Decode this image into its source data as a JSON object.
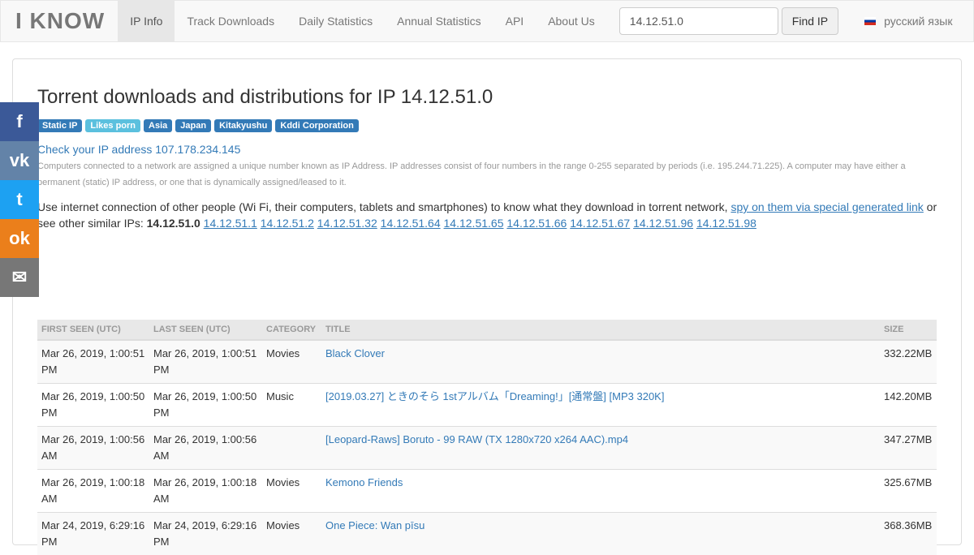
{
  "nav": {
    "logo": "I KNOW",
    "items": [
      "IP Info",
      "Track Downloads",
      "Daily Statistics",
      "Annual Statistics",
      "API",
      "About Us"
    ],
    "search_value": "14.12.51.0",
    "find_label": "Find IP",
    "language": "русский язык"
  },
  "heading": "Torrent downloads and distributions for IP 14.12.51.0",
  "badges": [
    "Static IP",
    "Likes porn",
    "Asia",
    "Japan",
    "Kitakyushu",
    "Kddi Corporation"
  ],
  "check_ip": "Check your IP address 107.178.234.145",
  "explain": "Computers connected to a network are assigned a unique number known as IP Address. IP addresses consist of four numbers in the range 0-255 separated by periods (i.e. 195.244.71.225). A computer may have either a permanent (static) IP address, or one that is dynamically assigned/leased to it.",
  "use_text": "Use internet connection of other people (Wi Fi, their computers, tablets and smartphones) to know what they download in torrent network, ",
  "spy_link": "spy on them via special generated link",
  "similar_text": " or see other similar IPs: ",
  "current_ip": "14.12.51.0",
  "similar_ips": [
    "14.12.51.1",
    "14.12.51.2",
    "14.12.51.32",
    "14.12.51.64",
    "14.12.51.65",
    "14.12.51.66",
    "14.12.51.67",
    "14.12.51.96",
    "14.12.51.98"
  ],
  "social": [
    {
      "icon": "facebook-icon",
      "glyph": "f",
      "color": "#3b5998"
    },
    {
      "icon": "vk-icon",
      "glyph": "vk",
      "color": "#6383a8"
    },
    {
      "icon": "twitter-icon",
      "glyph": "t",
      "color": "#1da1f2"
    },
    {
      "icon": "odnoklassniki-icon",
      "glyph": "ok",
      "color": "#eb7f1b"
    },
    {
      "icon": "email-icon",
      "glyph": "✉",
      "color": "#777"
    }
  ],
  "table": {
    "headers": [
      "FIRST SEEN (UTC)",
      "LAST SEEN (UTC)",
      "CATEGORY",
      "TITLE",
      "SIZE"
    ],
    "rows": [
      [
        "Mar 26, 2019, 1:00:51 PM",
        "Mar 26, 2019, 1:00:51 PM",
        "Movies",
        "Black Clover",
        "332.22MB"
      ],
      [
        "Mar 26, 2019, 1:00:50 PM",
        "Mar 26, 2019, 1:00:50 PM",
        "Music",
        "[2019.03.27] ときのそら 1stアルバム「Dreaming!」[通常盤] [MP3 320K]",
        "142.20MB"
      ],
      [
        "Mar 26, 2019, 1:00:56 AM",
        "Mar 26, 2019, 1:00:56 AM",
        "",
        "[Leopard-Raws] Boruto - 99 RAW (TX 1280x720 x264 AAC).mp4",
        "347.27MB"
      ],
      [
        "Mar 26, 2019, 1:00:18 AM",
        "Mar 26, 2019, 1:00:18 AM",
        "Movies",
        "Kemono Friends",
        "325.67MB"
      ],
      [
        "Mar 24, 2019, 6:29:16 PM",
        "Mar 24, 2019, 6:29:16 PM",
        "Movies",
        "One Piece: Wan pīsu",
        "368.36MB"
      ]
    ]
  }
}
